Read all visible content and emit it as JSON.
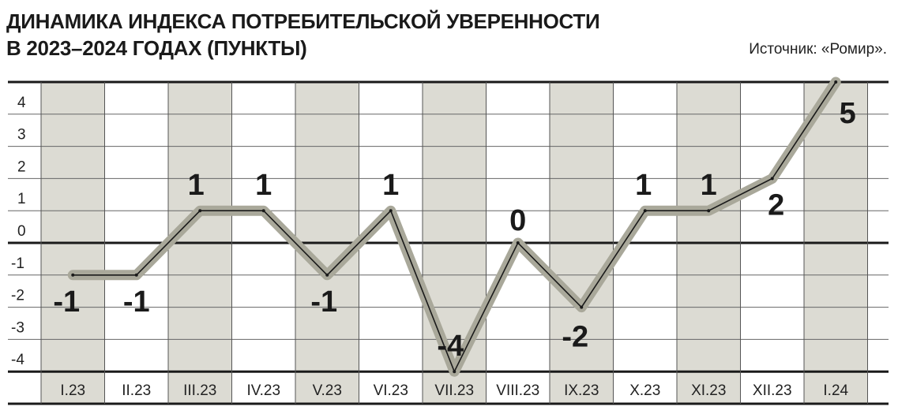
{
  "chart_data": {
    "type": "line",
    "title_lines": [
      "ДИНАМИКА ИНДЕКСА ПОТРЕБИТЕЛЬСКОЙ УВЕРЕННОСТИ",
      "В 2023–2024 ГОДАХ (ПУНКТЫ)"
    ],
    "source": "Источник: «Ромир».",
    "categories": [
      "I.23",
      "II.23",
      "III.23",
      "IV.23",
      "V.23",
      "VI.23",
      "VII.23",
      "VIII.23",
      "IX.23",
      "X.23",
      "XI.23",
      "XII.23",
      "I.24"
    ],
    "values": [
      -1,
      -1,
      1,
      1,
      -1,
      1,
      -4,
      0,
      -2,
      1,
      1,
      2,
      5
    ],
    "data_labels": [
      "-1",
      "-1",
      "1",
      "1",
      "-1",
      "1",
      "-4",
      "0",
      "-2",
      "1",
      "1",
      "2",
      "5"
    ],
    "y_ticks": [
      4,
      3,
      2,
      1,
      0,
      -1,
      -2,
      -3,
      -4
    ],
    "ylim": [
      -4,
      5
    ],
    "grid": true,
    "colors": {
      "line_band": "#a9a89a",
      "line": "#1a1a1a",
      "shade": "#dcdbd3"
    }
  }
}
